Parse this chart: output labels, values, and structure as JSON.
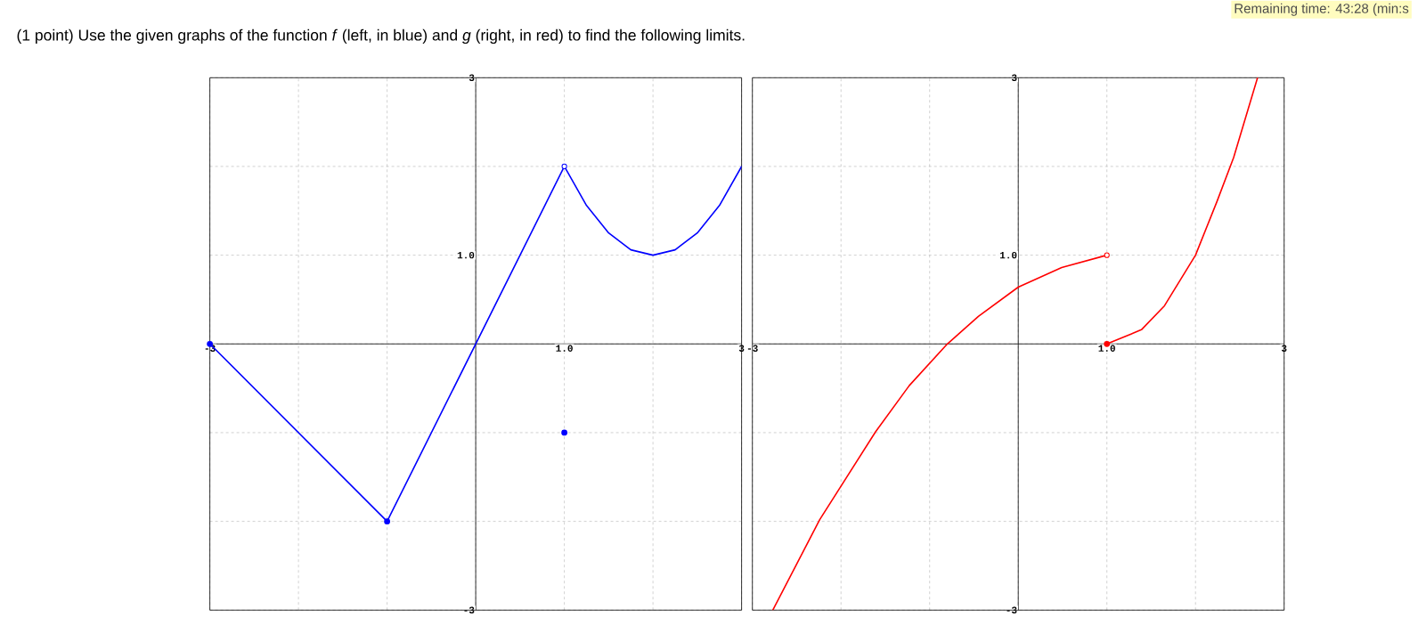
{
  "chart_data": [
    {
      "type": "line",
      "title": "(1 point) Use the given graphs of the function *f* (left, in blue) and *g* (right, in red) to find the following limits.",
      "xlim": [
        -3,
        3
      ],
      "ylim": [
        -3,
        3
      ],
      "xticks": [
        {
          "value": -3,
          "label": "-3"
        },
        {
          "value": -2,
          "label": null
        },
        {
          "value": -1,
          "label": null
        },
        {
          "value": 0,
          "label": null
        },
        {
          "value": 1,
          "label": "1.0"
        },
        {
          "value": 2,
          "label": null
        },
        {
          "value": 3,
          "label": "3"
        }
      ],
      "yticks": [
        {
          "value": -3,
          "label": "-3"
        },
        {
          "value": -2,
          "label": null
        },
        {
          "value": -1,
          "label": null
        },
        {
          "value": 0,
          "label": null
        },
        {
          "value": 1,
          "label": "1.0"
        },
        {
          "value": 2,
          "label": null
        },
        {
          "value": 3,
          "label": "3"
        }
      ],
      "grid": true,
      "series": [
        {
          "color": "#0000ff",
          "marker": "none",
          "x": [
            -3,
            -1,
            1
          ],
          "values": [
            0,
            -2,
            2
          ]
        },
        {
          "color": "#0000ff",
          "marker": "none",
          "x": [
            1,
            1.25,
            1.5,
            1.75,
            2,
            2.25,
            2.5,
            2.75,
            3
          ],
          "values": [
            2,
            1.56,
            1.25,
            1.06,
            1,
            1.06,
            1.25,
            1.56,
            2
          ]
        },
        {
          "type": "scatter",
          "color": "#0000ff",
          "marker": "circle",
          "x": [
            -3,
            -1,
            1
          ],
          "values": [
            0,
            -2,
            -1
          ]
        },
        {
          "type": "scatter",
          "color": "#ffffff",
          "marker": "circle",
          "x": [
            1
          ],
          "values": [
            2
          ]
        }
      ]
    },
    {
      "type": "line",
      "annotations": [
        "Remaining time: 43:28 (min:s"
      ],
      "xlim": [
        -3,
        3
      ],
      "ylim": [
        -3,
        3
      ],
      "xticks": [
        {
          "value": -3,
          "label": "-3"
        },
        {
          "value": -2,
          "label": null
        },
        {
          "value": -1,
          "label": null
        },
        {
          "value": 0,
          "label": null
        },
        {
          "value": 1,
          "label": "1.0"
        },
        {
          "value": 2,
          "label": null
        },
        {
          "value": 3,
          "label": "3"
        }
      ],
      "yticks": [
        {
          "value": -3,
          "label": "-3"
        },
        {
          "value": -2,
          "label": null
        },
        {
          "value": -1,
          "label": null
        },
        {
          "value": 0,
          "label": null
        },
        {
          "value": 1,
          "label": "1.0"
        },
        {
          "value": 2,
          "label": null
        },
        {
          "value": 3,
          "label": "3"
        }
      ],
      "grid": true,
      "series": [
        {
          "color": "#ff0000",
          "marker": "none",
          "x": [
            -2.77,
            -2.24,
            -1.61,
            -1.23,
            -0.8,
            -0.45,
            0,
            0.49,
            1
          ],
          "values": [
            -3,
            -1.98,
            -0.99,
            -0.47,
            0,
            0.31,
            0.64,
            0.86,
            1
          ]
        },
        {
          "color": "#ff0000",
          "marker": "none",
          "x": [
            1,
            1.39,
            1.65,
            2,
            2.24,
            2.43,
            2.7
          ],
          "values": [
            0,
            0.16,
            0.43,
            1,
            1.6,
            2.1,
            3
          ]
        },
        {
          "type": "scatter",
          "color": "#ff0000",
          "marker": "circle",
          "x": [
            1
          ],
          "values": [
            0
          ]
        },
        {
          "type": "scatter",
          "color": "#ffffff",
          "marker": "circle",
          "x": [
            1
          ],
          "values": [
            1
          ]
        }
      ]
    }
  ]
}
